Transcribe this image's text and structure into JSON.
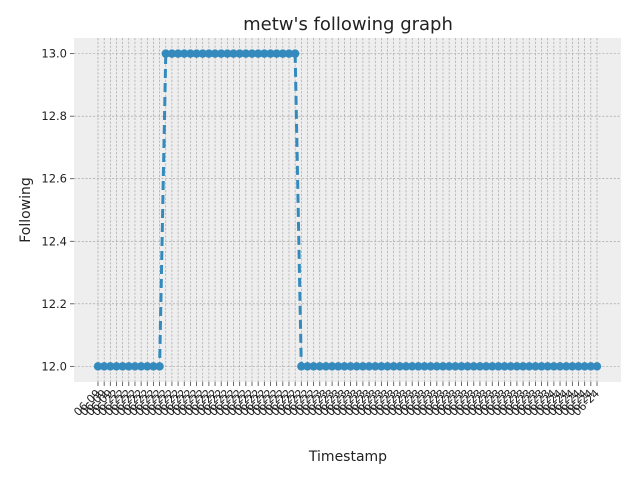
{
  "chart_data": {
    "type": "line",
    "title": "metw's following graph",
    "xlabel": "Timestamp",
    "ylabel": "Following",
    "ylim": [
      11.95,
      13.05
    ],
    "yticks": [
      12.0,
      12.2,
      12.4,
      12.6,
      12.8,
      13.0
    ],
    "grid": true,
    "series_color": "#348ABD",
    "background_color": "#EEEEEE",
    "series": [
      {
        "name": "",
        "x": [
          "06-09",
          "06-09",
          "06-09",
          "06-22",
          "06-22",
          "06-22",
          "06-22",
          "06-22",
          "06-22",
          "06-22",
          "06-22",
          "06-22",
          "06-22",
          "06-22",
          "06-22",
          "06-22",
          "06-22",
          "06-22",
          "06-22",
          "06-22",
          "06-22",
          "06-22",
          "06-22",
          "06-22",
          "06-22",
          "06-22",
          "06-22",
          "06-22",
          "06-22",
          "06-22",
          "06-22",
          "06-22",
          "06-22",
          "06-22",
          "06-22",
          "06-22",
          "06-23",
          "06-23",
          "06-23",
          "06-23",
          "06-23",
          "06-23",
          "06-23",
          "06-23",
          "06-23",
          "06-23",
          "06-23",
          "06-23",
          "06-23",
          "06-23",
          "06-23",
          "06-23",
          "06-23",
          "06-23",
          "06-23",
          "06-23",
          "06-23",
          "06-23",
          "06-23",
          "06-23",
          "06-23",
          "06-23",
          "06-23",
          "06-23",
          "06-23",
          "06-23",
          "06-23",
          "06-23",
          "06-23",
          "06-23",
          "06-23",
          "06-23",
          "06-23",
          "06-23",
          "06-24",
          "06-24",
          "06-24",
          "06-24",
          "06-24",
          "06-24",
          "06-24",
          "06-24"
        ],
        "y": [
          12,
          12,
          12,
          12,
          12,
          12,
          12,
          12,
          12,
          12,
          12,
          13,
          13,
          13,
          13,
          13,
          13,
          13,
          13,
          13,
          13,
          13,
          13,
          13,
          13,
          13,
          13,
          13,
          13,
          13,
          13,
          13,
          13,
          12,
          12,
          12,
          12,
          12,
          12,
          12,
          12,
          12,
          12,
          12,
          12,
          12,
          12,
          12,
          12,
          12,
          12,
          12,
          12,
          12,
          12,
          12,
          12,
          12,
          12,
          12,
          12,
          12,
          12,
          12,
          12,
          12,
          12,
          12,
          12,
          12,
          12,
          12,
          12,
          12,
          12,
          12,
          12,
          12,
          12,
          12,
          12,
          12
        ]
      }
    ],
    "x_tick_labels": [
      "06-09",
      "06-09",
      "06-09",
      "06-22",
      "06-22",
      "06-22",
      "06-22",
      "06-22",
      "06-22",
      "06-22",
      "06-22",
      "06-22",
      "06-22",
      "06-22",
      "06-22",
      "06-22",
      "06-22",
      "06-22",
      "06-22",
      "06-22",
      "06-22",
      "06-22",
      "06-22",
      "06-22",
      "06-22",
      "06-22",
      "06-22",
      "06-22",
      "06-22",
      "06-22",
      "06-22",
      "06-22",
      "06-22",
      "06-22",
      "06-22",
      "06-22",
      "06-23",
      "06-23",
      "06-23",
      "06-23",
      "06-23",
      "06-23",
      "06-23",
      "06-23",
      "06-23",
      "06-23",
      "06-23",
      "06-23",
      "06-23",
      "06-23",
      "06-23",
      "06-23",
      "06-23",
      "06-23",
      "06-23",
      "06-23",
      "06-23",
      "06-23",
      "06-23",
      "06-23",
      "06-23",
      "06-23",
      "06-23",
      "06-23",
      "06-23",
      "06-23",
      "06-23",
      "06-23",
      "06-23",
      "06-23",
      "06-23",
      "06-23",
      "06-23",
      "06-23",
      "06-24",
      "06-24",
      "06-24",
      "06-24",
      "06-24",
      "06-24",
      "06-24",
      "06-24"
    ]
  }
}
